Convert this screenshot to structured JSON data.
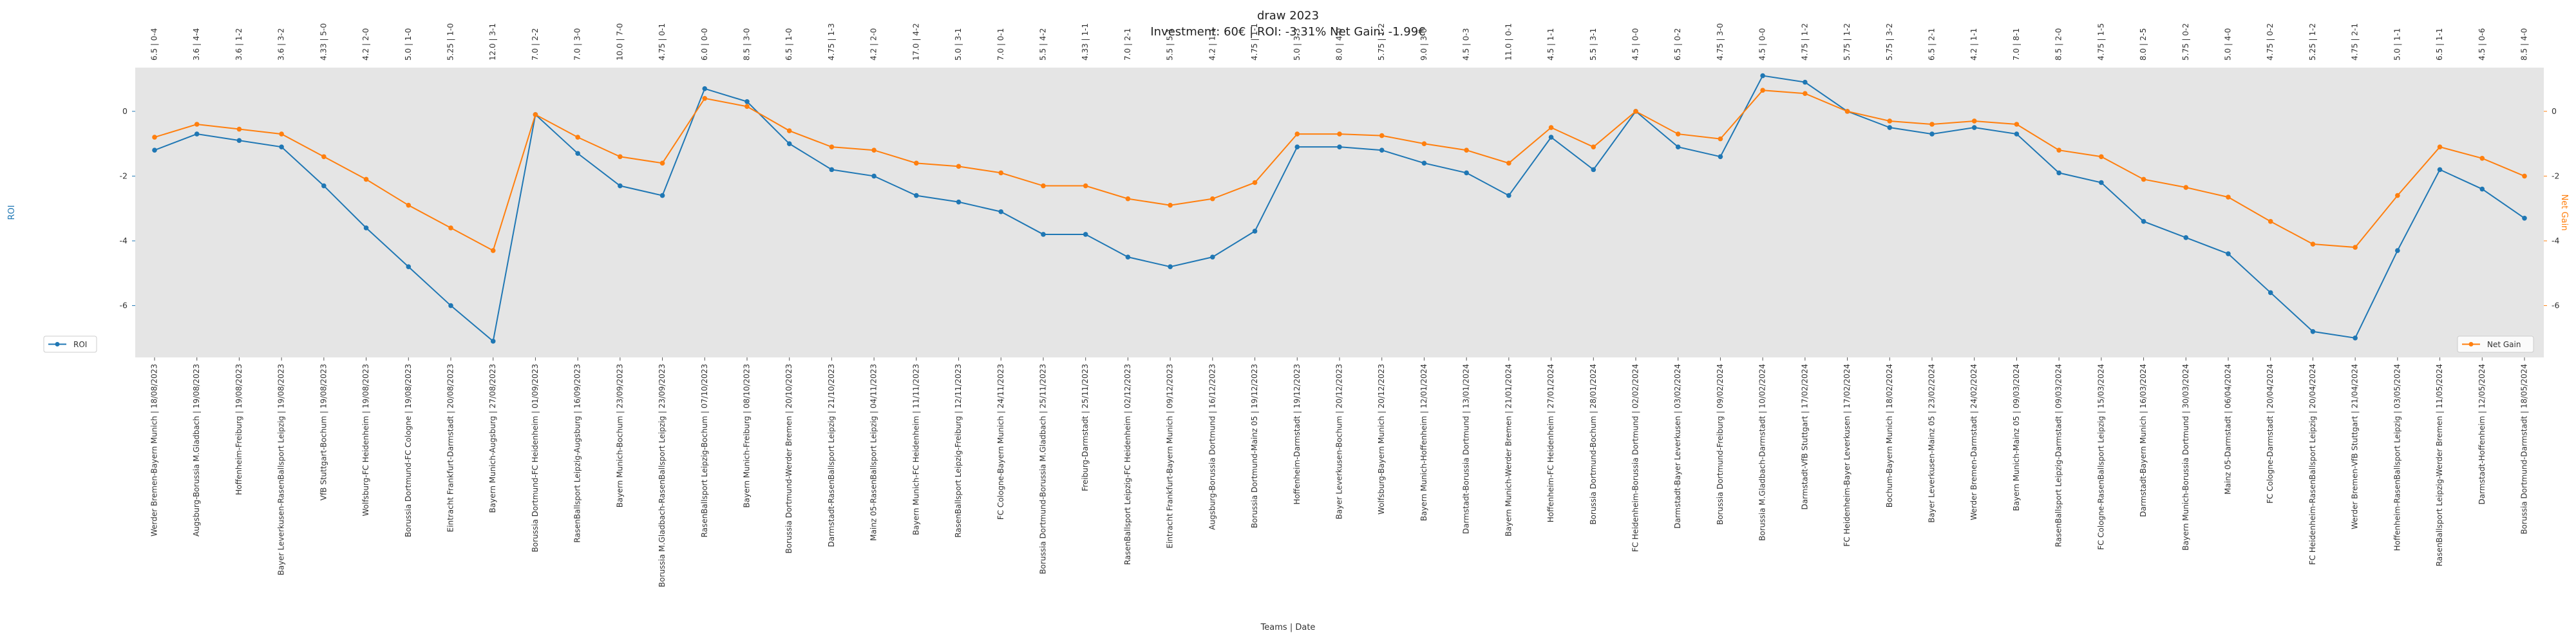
{
  "chart_data": {
    "type": "line",
    "title": "draw 2023",
    "subtitle": "Investment: 60€ | ROI: -3.31% Net Gain: -1.99€",
    "xlabel": "Teams | Date",
    "ylabel_left": "ROI",
    "ylabel_right": "Net Gain",
    "ylim_left": [
      -7.6,
      1.35
    ],
    "ylim_right": [
      -7.6,
      1.35
    ],
    "yticks": [
      0,
      -2,
      -4,
      -6
    ],
    "grid": false,
    "legend_left_placement": "lower-left",
    "legend_right_placement": "lower-right",
    "colors": {
      "roi": "#1f77b4",
      "net_gain": "#ff7f0e",
      "plot_bg": "#e5e5e5"
    },
    "categories": [
      "Werder Bremen-Bayern Munich | 18/08/2023",
      "Augsburg-Borussia M.Gladbach | 19/08/2023",
      "Hoffenheim-Freiburg | 19/08/2023",
      "Bayer Leverkusen-RasenBallsport Leipzig | 19/08/2023",
      "VfB Stuttgart-Bochum | 19/08/2023",
      "Wolfsburg-FC Heidenheim | 19/08/2023",
      "Borussia Dortmund-FC Cologne | 19/08/2023",
      "Eintracht Frankfurt-Darmstadt | 20/08/2023",
      "Bayern Munich-Augsburg | 27/08/2023",
      "Borussia Dortmund-FC Heidenheim | 01/09/2023",
      "RasenBallsport Leipzig-Augsburg | 16/09/2023",
      "Bayern Munich-Bochum | 23/09/2023",
      "Borussia M.Gladbach-RasenBallsport Leipzig | 23/09/2023",
      "RasenBallsport Leipzig-Bochum | 07/10/2023",
      "Bayern Munich-Freiburg | 08/10/2023",
      "Borussia Dortmund-Werder Bremen | 20/10/2023",
      "Darmstadt-RasenBallsport Leipzig | 21/10/2023",
      "Mainz 05-RasenBallsport Leipzig | 04/11/2023",
      "Bayern Munich-FC Heidenheim | 11/11/2023",
      "RasenBallsport Leipzig-Freiburg | 12/11/2023",
      "FC Cologne-Bayern Munich | 24/11/2023",
      "Borussia Dortmund-Borussia M.Gladbach | 25/11/2023",
      "Freiburg-Darmstadt | 25/11/2023",
      "RasenBallsport Leipzig-FC Heidenheim | 02/12/2023",
      "Eintracht Frankfurt-Bayern Munich | 09/12/2023",
      "Augsburg-Borussia Dortmund | 16/12/2023",
      "Borussia Dortmund-Mainz 05 | 19/12/2023",
      "Hoffenheim-Darmstadt | 19/12/2023",
      "Bayer Leverkusen-Bochum | 20/12/2023",
      "Wolfsburg-Bayern Munich | 20/12/2023",
      "Bayern Munich-Hoffenheim | 12/01/2024",
      "Darmstadt-Borussia Dortmund | 13/01/2024",
      "Bayern Munich-Werder Bremen | 21/01/2024",
      "Hoffenheim-FC Heidenheim | 27/01/2024",
      "Borussia Dortmund-Bochum | 28/01/2024",
      "FC Heidenheim-Borussia Dortmund | 02/02/2024",
      "Darmstadt-Bayer Leverkusen | 03/02/2024",
      "Borussia Dortmund-Freiburg | 09/02/2024",
      "Borussia M.Gladbach-Darmstadt | 10/02/2024",
      "Darmstadt-VfB Stuttgart | 17/02/2024",
      "FC Heidenheim-Bayer Leverkusen | 17/02/2024",
      "Bochum-Bayern Munich | 18/02/2024",
      "Bayer Leverkusen-Mainz 05 | 23/02/2024",
      "Werder Bremen-Darmstadt | 24/02/2024",
      "Bayern Munich-Mainz 05 | 09/03/2024",
      "RasenBallsport Leipzig-Darmstadt | 09/03/2024",
      "FC Cologne-RasenBallsport Leipzig | 15/03/2024",
      "Darmstadt-Bayern Munich | 16/03/2024",
      "Bayern Munich-Borussia Dortmund | 30/03/2024",
      "Mainz 05-Darmstadt | 06/04/2024",
      "FC Cologne-Darmstadt | 20/04/2024",
      "FC Heidenheim-RasenBallsport Leipzig | 20/04/2024",
      "Werder Bremen-VfB Stuttgart | 21/04/2024",
      "Hoffenheim-RasenBallsport Leipzig | 03/05/2024",
      "RasenBallsport Leipzig-Werder Bremen | 11/05/2024",
      "Darmstadt-Hoffenheim | 12/05/2024",
      "Borussia Dortmund-Darmstadt | 18/05/2024"
    ],
    "top_labels": [
      "6.5 | 0-4",
      "3.6 | 4-4",
      "3.6 | 1-2",
      "3.6 | 3-2",
      "4.33 | 5-0",
      "4.2 | 2-0",
      "5.0 | 1-0",
      "5.25 | 1-0",
      "12.0 | 3-1",
      "7.0 | 2-2",
      "7.0 | 3-0",
      "10.0 | 7-0",
      "4.75 | 0-1",
      "6.0 | 0-0",
      "8.5 | 3-0",
      "6.5 | 1-0",
      "4.75 | 1-3",
      "4.2 | 2-0",
      "17.0 | 4-2",
      "5.0 | 3-1",
      "7.0 | 0-1",
      "5.5 | 4-2",
      "4.33 | 1-1",
      "7.0 | 2-1",
      "5.5 | 5-1",
      "4.2 | 1-1",
      "4.75 | 1-1",
      "5.0 | 3-3",
      "8.0 | 4-0",
      "5.75 | 1-2",
      "9.0 | 3-0",
      "4.5 | 0-3",
      "11.0 | 0-1",
      "4.5 | 1-1",
      "5.5 | 3-1",
      "4.5 | 0-0",
      "6.5 | 0-2",
      "4.75 | 3-0",
      "4.5 | 0-0",
      "4.75 | 1-2",
      "5.75 | 1-2",
      "5.75 | 3-2",
      "6.5 | 2-1",
      "4.2 | 1-1",
      "7.0 | 8-1",
      "8.5 | 2-0",
      "4.75 | 1-5",
      "8.0 | 2-5",
      "5.75 | 0-2",
      "5.0 | 4-0",
      "4.75 | 0-2",
      "5.25 | 1-2",
      "4.75 | 2-1",
      "5.0 | 1-1",
      "6.5 | 1-1",
      "4.5 | 0-6",
      "8.5 | 4-0"
    ],
    "series": [
      {
        "name": "ROI",
        "axis": "left",
        "values": [
          -1.2,
          -0.7,
          -0.9,
          -1.1,
          -2.3,
          -3.6,
          -4.8,
          -6.0,
          -7.1,
          -0.1,
          -1.3,
          -2.3,
          -2.6,
          0.7,
          0.3,
          -1.0,
          -1.8,
          -2.0,
          -2.6,
          -2.8,
          -3.1,
          -3.8,
          -3.8,
          -4.5,
          -4.8,
          -4.5,
          -3.7,
          -1.1,
          -1.1,
          -1.2,
          -1.6,
          -1.9,
          -2.6,
          -0.8,
          -1.8,
          0.0,
          -1.1,
          -1.4,
          1.1,
          0.9,
          0.0,
          -0.5,
          -0.7,
          -0.5,
          -0.7,
          -1.9,
          -2.2,
          -3.4,
          -3.9,
          -4.4,
          -5.6,
          -6.8,
          -7.0,
          -4.3,
          -1.8,
          -2.4,
          -3.3
        ]
      },
      {
        "name": "Net Gain",
        "axis": "right",
        "values": [
          -0.8,
          -0.4,
          -0.55,
          -0.7,
          -1.4,
          -2.1,
          -2.9,
          -3.6,
          -4.3,
          -0.1,
          -0.8,
          -1.4,
          -1.6,
          0.4,
          0.15,
          -0.6,
          -1.1,
          -1.2,
          -1.6,
          -1.7,
          -1.9,
          -2.3,
          -2.3,
          -2.7,
          -2.9,
          -2.7,
          -2.2,
          -0.7,
          -0.7,
          -0.75,
          -1.0,
          -1.2,
          -1.6,
          -0.5,
          -1.1,
          0.0,
          -0.7,
          -0.85,
          0.65,
          0.55,
          0.0,
          -0.3,
          -0.4,
          -0.3,
          -0.4,
          -1.2,
          -1.4,
          -2.1,
          -2.35,
          -2.65,
          -3.4,
          -4.1,
          -4.2,
          -2.6,
          -1.1,
          -1.45,
          -2.0
        ]
      }
    ]
  }
}
